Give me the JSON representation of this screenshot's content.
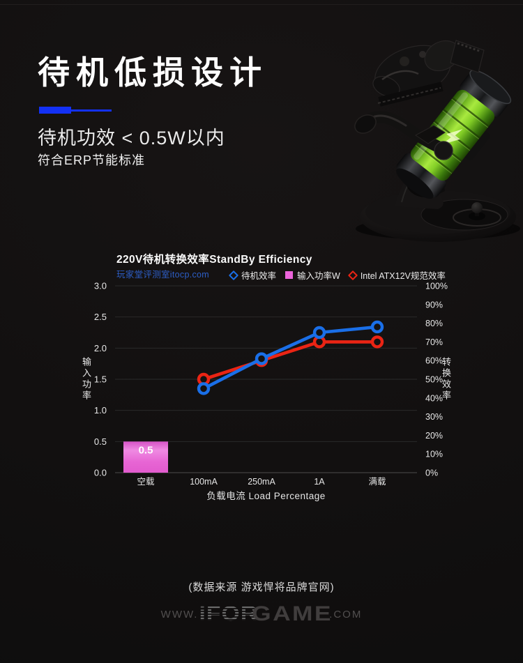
{
  "header": {
    "title": "待机低损设计",
    "subtitle": "待机功效 < 0.5W以内",
    "subtitle2": "符合ERP节能标准"
  },
  "colors": {
    "accent_blue": "#1331f5",
    "link_blue": "#2d5ec6",
    "line_blue": "#1a6fe8",
    "line_red": "#ea2414",
    "bar_magenta": "#ec64da"
  },
  "chart_data": {
    "type": "combo-bar-line",
    "title": "220V待机转换效率StandBy Efficiency",
    "source_link": "玩家堂评测室itocp.com",
    "categories": [
      "空载",
      "100mA",
      "250mA",
      "1A",
      "满载"
    ],
    "xlabel": "负载电流 Load Percentage",
    "grid": "horizontal",
    "legend_position": "top-right",
    "left_axis": {
      "label": "输入功率",
      "min": 0,
      "max": 3,
      "tick_labels": [
        "0.0",
        "0.5",
        "1.0",
        "1.5",
        "2.0",
        "2.5",
        "3.0"
      ]
    },
    "right_axis": {
      "label": "转换效率",
      "min": 0,
      "max": 100,
      "tick_labels": [
        "0%",
        "10%",
        "20%",
        "30%",
        "40%",
        "50%",
        "60%",
        "70%",
        "80%",
        "90%",
        "100%"
      ]
    },
    "series": [
      {
        "name": "待机效率",
        "type": "line",
        "axis": "right",
        "marker": "diamond-outline",
        "color": "#1a6fe8",
        "values": [
          null,
          45,
          61,
          75,
          78
        ]
      },
      {
        "name": "输入功率W",
        "type": "bar",
        "axis": "left",
        "marker": "square",
        "color": "#ec64da",
        "values": [
          0.5,
          null,
          null,
          null,
          null
        ],
        "bar_label": "0.5"
      },
      {
        "name": "Intel ATX12V规范效率",
        "type": "line",
        "axis": "right",
        "marker": "diamond-outline",
        "color": "#ea2414",
        "values": [
          null,
          50,
          60,
          70,
          70
        ]
      }
    ]
  },
  "footer": {
    "source_note": "(数据来源 游戏悍将品牌官网)",
    "watermark": {
      "prefix": "WWW.",
      "brand_a": "iFOR",
      "brand_b": "GAME",
      "suffix": ".COM"
    }
  }
}
